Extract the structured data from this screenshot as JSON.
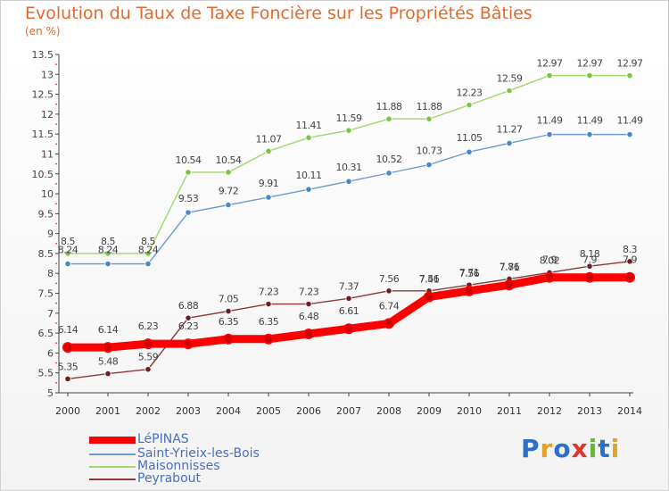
{
  "chart_data": {
    "type": "line",
    "title": "Evolution du Taux de Taxe Foncière sur les Propriétés Bâties",
    "subtitle": "(en %)",
    "x": [
      "2000",
      "2001",
      "2002",
      "2003",
      "2004",
      "2005",
      "2006",
      "2007",
      "2008",
      "2009",
      "2010",
      "2011",
      "2012",
      "2013",
      "2014"
    ],
    "y_ticks": [
      "5",
      "5.5",
      "6",
      "6.5",
      "7",
      "7.5",
      "8",
      "8.5",
      "9",
      "9.5",
      "10",
      "10.5",
      "11",
      "11.5",
      "12",
      "12.5",
      "13",
      "13.5"
    ],
    "ylim": [
      5,
      13.5
    ],
    "grid": false,
    "legend_position": "bottom-left",
    "series": [
      {
        "name": "LéPINAS",
        "color": "#ff0000",
        "marker": "#cc0000",
        "style": "thick",
        "values": [
          6.14,
          6.14,
          6.23,
          6.23,
          6.35,
          6.35,
          6.48,
          6.61,
          6.74,
          7.41,
          7.56,
          7.71,
          7.9,
          7.9,
          7.9
        ],
        "labels": [
          "6.14",
          "6.14",
          "6.23",
          "6.23",
          "6.35",
          "6.35",
          "6.48",
          "6.61",
          "6.74",
          "7.41",
          "7.56",
          "7.71",
          "7.9",
          "7.9",
          "7.9"
        ]
      },
      {
        "name": "Saint-Yrieix-les-Bois",
        "color": "#6b9bd1",
        "marker": "#4a86c8",
        "values": [
          8.24,
          8.24,
          8.24,
          9.53,
          9.72,
          9.91,
          10.11,
          10.31,
          10.52,
          10.73,
          11.05,
          11.27,
          11.49,
          11.49,
          11.49
        ],
        "labels": [
          "8.24",
          "8.24",
          "8.24",
          "9.53",
          "9.72",
          "9.91",
          "10.11",
          "10.31",
          "10.52",
          "10.73",
          "11.05",
          "11.27",
          "11.49",
          "11.49",
          "11.49"
        ]
      },
      {
        "name": "Maisonnisses",
        "color": "#9fd96b",
        "marker": "#7cc443",
        "values": [
          8.5,
          8.5,
          8.5,
          10.54,
          10.54,
          11.07,
          11.41,
          11.59,
          11.88,
          11.88,
          12.23,
          12.59,
          12.97,
          12.97,
          12.97
        ],
        "labels": [
          "8.5",
          "8.5",
          "8.5",
          "10.54",
          "10.54",
          "11.07",
          "11.41",
          "11.59",
          "11.88",
          "11.88",
          "12.23",
          "12.59",
          "12.97",
          "12.97",
          "12.97"
        ]
      },
      {
        "name": "Peyrabout",
        "color": "#8b3a3a",
        "marker": "#6b1f1f",
        "values": [
          5.35,
          5.48,
          5.59,
          6.88,
          7.05,
          7.23,
          7.23,
          7.37,
          7.56,
          7.56,
          7.71,
          7.86,
          8.02,
          8.18,
          8.3
        ],
        "labels": [
          "5.35",
          "5.48",
          "5.59",
          "6.88",
          "7.05",
          "7.23",
          "7.23",
          "7.37",
          "7.56",
          "7.56",
          "7.71",
          "7.86",
          "8.02",
          "8.18",
          "8.3"
        ]
      }
    ]
  },
  "logo": {
    "text": "Proxiti"
  }
}
